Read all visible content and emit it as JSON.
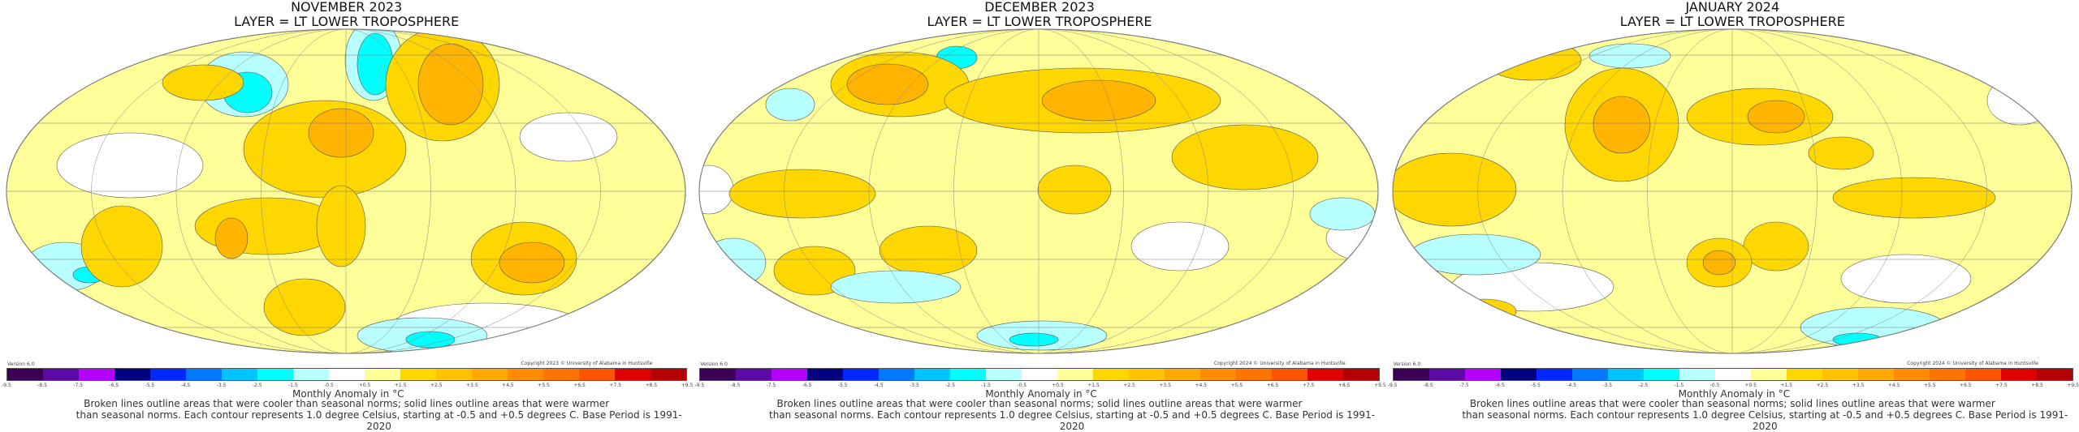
{
  "chart_data": [
    {
      "type": "heatmap",
      "title": "NOVEMBER 2023",
      "subtitle": "LAYER = LT LOWER TROPOSPHERE",
      "copyright": "Copyright 2023 © University of Alabama in Huntsville"
    },
    {
      "type": "heatmap",
      "title": "DECEMBER 2023",
      "subtitle": "LAYER = LT LOWER TROPOSPHERE",
      "copyright": "Copyright 2024 © University of Alabama in Huntsville"
    },
    {
      "type": "heatmap",
      "title": "JANUARY 2024",
      "subtitle": "LAYER = LT LOWER TROPOSPHERE",
      "copyright": "Copyright 2024 © University of Alabama in Huntsville"
    }
  ],
  "version": "Version 6.0",
  "colorbar": {
    "ticks": [
      "-9.5",
      "-8.5",
      "-7.5",
      "-6.5",
      "-5.5",
      "-4.5",
      "-3.5",
      "-2.5",
      "-1.5",
      "-0.5",
      "+0.5",
      "+1.5",
      "+2.5",
      "+3.5",
      "+4.5",
      "+5.5",
      "+6.5",
      "+7.5",
      "+8.5",
      "+9.5"
    ],
    "colors": [
      "#3a0055",
      "#5b0aa5",
      "#b400ff",
      "#000080",
      "#0028ff",
      "#0078ff",
      "#00c4ff",
      "#00ffff",
      "#b8ffff",
      "#ffffff",
      "#ffff99",
      "#ffd700",
      "#ffc200",
      "#ffa800",
      "#ff8c00",
      "#ff7400",
      "#ff5500",
      "#e00000",
      "#b30000"
    ],
    "unit_label": "Monthly Anomaly in °C"
  },
  "note_line1": "Broken lines outline areas that were cooler than seasonal norms; solid lines outline areas that were warmer",
  "note_line2": "than seasonal norms. Each contour represents 1.0 degree Celsius, starting at -0.5 and +0.5 degrees C. Base Period is 1991-2020"
}
